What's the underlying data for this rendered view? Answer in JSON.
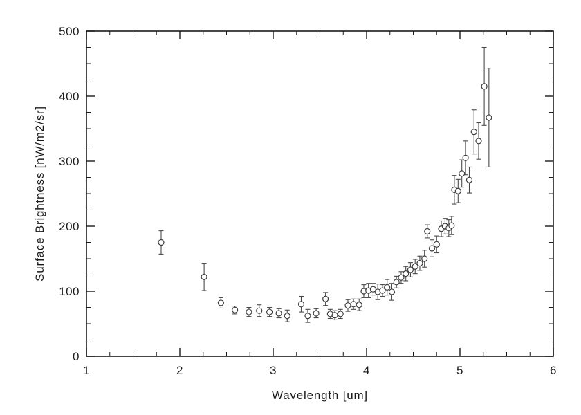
{
  "page": {
    "background": "#ffffff",
    "axis_color": "#1a1a1a",
    "marker_color": "#3d3d3d",
    "error_bar_color": "#4a4a4a"
  },
  "chart_data": {
    "type": "scatter",
    "title": "",
    "xlabel": "Wavelength [um]",
    "ylabel": "Surface Brightness [nW/m2/sr]",
    "xlim": [
      1,
      6
    ],
    "ylim": [
      0,
      500
    ],
    "xticks": [
      1,
      2,
      3,
      4,
      5,
      6
    ],
    "yticks": [
      0,
      100,
      200,
      300,
      400,
      500
    ],
    "x_minor_step": 0.25,
    "y_minor_step": 25,
    "grid": false,
    "legend": "none",
    "marker": "open-circle",
    "error_bars": "vertical-with-caps",
    "point_format": [
      "wavelength_um",
      "brightness_nW_m2_sr",
      "error_plus_minus"
    ],
    "series": [
      {
        "name": "surface-brightness",
        "points": [
          [
            1.8,
            175,
            18
          ],
          [
            2.26,
            122,
            21
          ],
          [
            2.44,
            82,
            8
          ],
          [
            2.59,
            71,
            6
          ],
          [
            2.74,
            68,
            7
          ],
          [
            2.85,
            70,
            9
          ],
          [
            2.96,
            68,
            7
          ],
          [
            3.06,
            66,
            7
          ],
          [
            3.15,
            62,
            9
          ],
          [
            3.3,
            80,
            12
          ],
          [
            3.37,
            62,
            10
          ],
          [
            3.46,
            66,
            7
          ],
          [
            3.56,
            88,
            10
          ],
          [
            3.61,
            65,
            7
          ],
          [
            3.66,
            63,
            7
          ],
          [
            3.72,
            65,
            7
          ],
          [
            3.8,
            78,
            9
          ],
          [
            3.86,
            80,
            8
          ],
          [
            3.92,
            79,
            9
          ],
          [
            3.97,
            100,
            10
          ],
          [
            4.02,
            101,
            11
          ],
          [
            4.07,
            103,
            9
          ],
          [
            4.12,
            99,
            12
          ],
          [
            4.17,
            101,
            9
          ],
          [
            4.22,
            106,
            12
          ],
          [
            4.27,
            99,
            13
          ],
          [
            4.32,
            114,
            9
          ],
          [
            4.37,
            121,
            9
          ],
          [
            4.42,
            127,
            11
          ],
          [
            4.47,
            133,
            11
          ],
          [
            4.52,
            138,
            11
          ],
          [
            4.57,
            143,
            11
          ],
          [
            4.62,
            150,
            13
          ],
          [
            4.65,
            192,
            10
          ],
          [
            4.7,
            166,
            13
          ],
          [
            4.75,
            172,
            13
          ],
          [
            4.8,
            196,
            12
          ],
          [
            4.84,
            200,
            12
          ],
          [
            4.88,
            197,
            13
          ],
          [
            4.91,
            201,
            14
          ],
          [
            4.94,
            256,
            22
          ],
          [
            4.98,
            254,
            18
          ],
          [
            5.02,
            281,
            21
          ],
          [
            5.06,
            305,
            26
          ],
          [
            5.1,
            271,
            20
          ],
          [
            5.15,
            345,
            34
          ],
          [
            5.2,
            331,
            28
          ],
          [
            5.26,
            415,
            60
          ],
          [
            5.31,
            367,
            76
          ]
        ]
      }
    ]
  }
}
